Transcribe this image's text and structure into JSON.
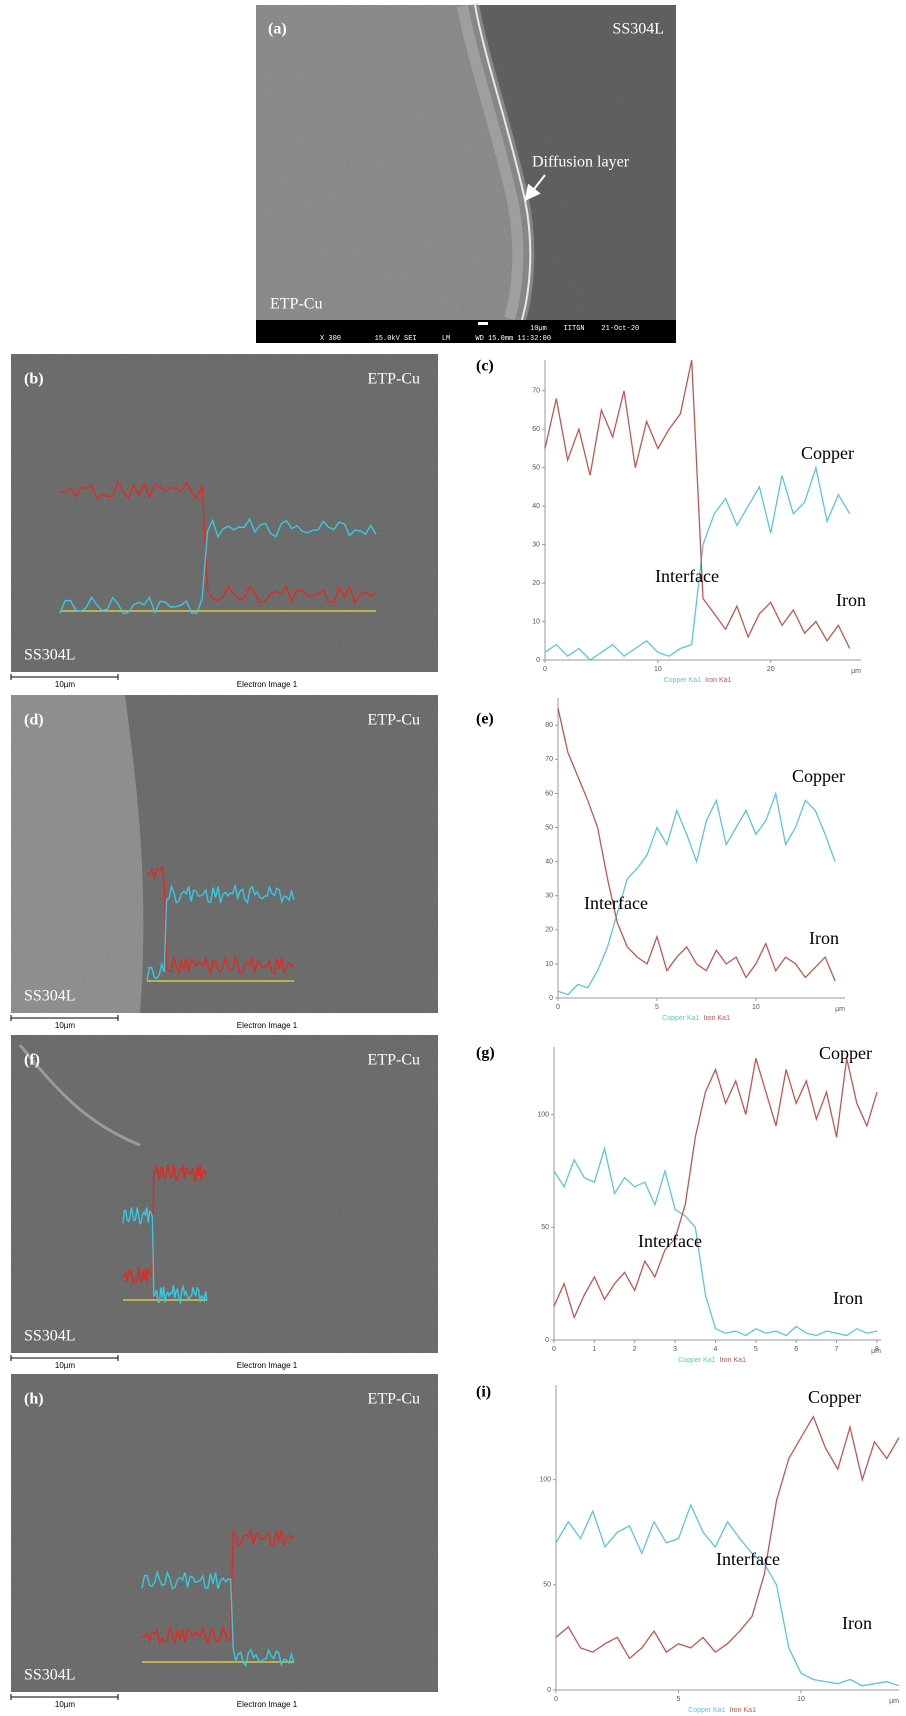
{
  "panels": [
    {
      "label": "(a)",
      "top_right": "SS304L",
      "annotation": "Diffusion layer",
      "bottom_left": "ETP-Cu",
      "info_top": "10µm    IITGN    21-Oct-20",
      "info_bottom": "X 300        15.0kV SEI      LM      WD 15.0mm 11:32:00"
    },
    {
      "label": "(b)",
      "top_right": "ETP-Cu",
      "bottom_left": "SS304L",
      "scale": "10µm",
      "caption": "Electron Image 1"
    },
    {
      "label": "(d)",
      "top_right": "ETP-Cu",
      "bottom_left": "SS304L",
      "scale": "10µm",
      "caption": "Electron Image 1"
    },
    {
      "label": "(f)",
      "top_right": "ETP-Cu",
      "bottom_left": "SS304L",
      "scale": "10µm",
      "caption": "Electron Image 1"
    },
    {
      "label": "(h)",
      "top_right": "ETP-Cu",
      "bottom_left": "SS304L",
      "scale": "10µm",
      "caption": "Electron Image 1"
    }
  ],
  "chart_data": [
    {
      "type": "line",
      "label": "(c)",
      "annotations": [
        "Copper",
        "Interface",
        "Iron"
      ],
      "x_label": "µm",
      "xlim": [
        0,
        28
      ],
      "ylim": [
        0,
        78
      ],
      "xticks": [
        0,
        10,
        20
      ],
      "yticks": [
        0,
        10,
        20,
        30,
        40,
        50,
        60,
        70
      ],
      "x": [
        0,
        1,
        2,
        3,
        4,
        5,
        6,
        7,
        8,
        9,
        10,
        11,
        12,
        13,
        14,
        15,
        16,
        17,
        18,
        19,
        20,
        21,
        22,
        23,
        24,
        25,
        26,
        27
      ],
      "series": [
        {
          "name": "Copper Ka1",
          "color": "#5bc6dc",
          "values": [
            2,
            4,
            1,
            3,
            0,
            2,
            4,
            1,
            3,
            5,
            2,
            1,
            3,
            4,
            30,
            38,
            42,
            35,
            40,
            45,
            33,
            48,
            38,
            41,
            50,
            36,
            43,
            38
          ]
        },
        {
          "name": "Iron Ka1",
          "color": "#c4564f",
          "values": [
            55,
            68,
            52,
            60,
            48,
            65,
            58,
            70,
            50,
            62,
            55,
            60,
            64,
            78,
            16,
            12,
            8,
            14,
            6,
            12,
            15,
            9,
            13,
            7,
            10,
            5,
            9,
            3
          ]
        }
      ]
    },
    {
      "type": "line",
      "label": "(e)",
      "annotations": [
        "Copper",
        "Interface",
        "Iron"
      ],
      "x_label": "µm",
      "xlim": [
        0,
        14.5
      ],
      "ylim": [
        0,
        88
      ],
      "xticks": [
        0,
        5,
        10
      ],
      "yticks": [
        0,
        10,
        20,
        30,
        40,
        50,
        60,
        70,
        80
      ],
      "x": [
        0,
        0.5,
        1,
        1.5,
        2,
        2.5,
        3,
        3.5,
        4,
        4.5,
        5,
        5.5,
        6,
        6.5,
        7,
        7.5,
        8,
        8.5,
        9,
        9.5,
        10,
        10.5,
        11,
        11.5,
        12,
        12.5,
        13,
        13.5,
        14
      ],
      "series": [
        {
          "name": "Copper Ka1",
          "color": "#5bc6dc",
          "values": [
            2,
            1,
            4,
            3,
            8,
            15,
            25,
            35,
            38,
            42,
            50,
            45,
            55,
            48,
            40,
            52,
            58,
            45,
            50,
            55,
            48,
            52,
            60,
            45,
            50,
            58,
            55,
            48,
            40
          ]
        },
        {
          "name": "Iron Ka1",
          "color": "#c4564f",
          "values": [
            85,
            72,
            65,
            58,
            50,
            35,
            22,
            15,
            12,
            10,
            18,
            8,
            12,
            15,
            10,
            8,
            14,
            10,
            12,
            6,
            10,
            16,
            8,
            12,
            10,
            6,
            9,
            12,
            5
          ]
        }
      ]
    },
    {
      "type": "line",
      "label": "(g)",
      "annotations": [
        "Copper",
        "Interface",
        "Iron"
      ],
      "x_label": "µm",
      "xlim": [
        0,
        8.1
      ],
      "ylim": [
        0,
        130
      ],
      "xticks": [
        0,
        1,
        2,
        3,
        4,
        5,
        6,
        7,
        8
      ],
      "yticks": [
        0,
        50,
        100
      ],
      "x": [
        0,
        0.25,
        0.5,
        0.75,
        1,
        1.25,
        1.5,
        1.75,
        2,
        2.25,
        2.5,
        2.75,
        3,
        3.25,
        3.5,
        3.75,
        4,
        4.25,
        4.5,
        4.75,
        5,
        5.25,
        5.5,
        5.75,
        6,
        6.25,
        6.5,
        6.75,
        7,
        7.25,
        7.5,
        7.75,
        8
      ],
      "series": [
        {
          "name": "Copper Ka1",
          "color": "#5bc6dc",
          "values": [
            75,
            68,
            80,
            72,
            70,
            85,
            65,
            72,
            68,
            70,
            60,
            75,
            58,
            55,
            50,
            20,
            5,
            3,
            4,
            2,
            5,
            3,
            4,
            2,
            6,
            3,
            2,
            4,
            3,
            2,
            5,
            3,
            4
          ]
        },
        {
          "name": "Iron Ka1",
          "color": "#c4564f",
          "values": [
            15,
            25,
            10,
            20,
            28,
            18,
            25,
            30,
            22,
            35,
            28,
            40,
            45,
            60,
            90,
            110,
            120,
            105,
            115,
            100,
            125,
            110,
            95,
            120,
            105,
            115,
            98,
            110,
            90,
            125,
            105,
            95,
            110
          ]
        }
      ]
    },
    {
      "type": "line",
      "label": "(i)",
      "annotations": [
        "Copper",
        "Interface",
        "Iron"
      ],
      "x_label": "µm",
      "xlim": [
        0,
        14
      ],
      "ylim": [
        0,
        145
      ],
      "xticks": [
        0,
        5,
        10
      ],
      "yticks": [
        0,
        50,
        100
      ],
      "x": [
        0,
        0.5,
        1,
        1.5,
        2,
        2.5,
        3,
        3.5,
        4,
        4.5,
        5,
        5.5,
        6,
        6.5,
        7,
        7.5,
        8,
        8.5,
        9,
        9.5,
        10,
        10.5,
        11,
        11.5,
        12,
        12.5,
        13,
        13.5,
        14
      ],
      "series": [
        {
          "name": "Copper Ka1",
          "color": "#5bc6dc",
          "values": [
            70,
            80,
            72,
            85,
            68,
            75,
            78,
            65,
            80,
            70,
            72,
            88,
            75,
            68,
            80,
            72,
            65,
            60,
            50,
            20,
            8,
            5,
            4,
            3,
            5,
            2,
            3,
            4,
            2
          ]
        },
        {
          "name": "Iron Ka1",
          "color": "#c4564f",
          "values": [
            25,
            30,
            20,
            18,
            22,
            25,
            15,
            20,
            28,
            18,
            22,
            20,
            25,
            18,
            22,
            28,
            35,
            55,
            90,
            110,
            120,
            130,
            115,
            105,
            125,
            100,
            118,
            110,
            120
          ]
        }
      ]
    }
  ]
}
